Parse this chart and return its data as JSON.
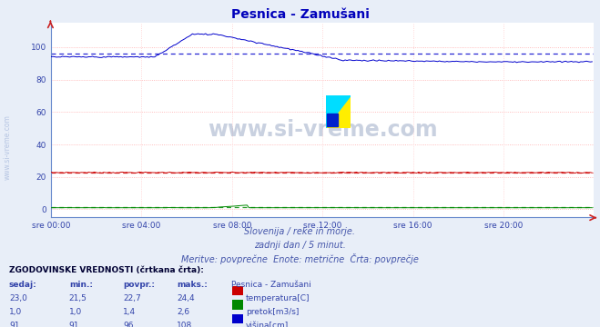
{
  "title": "Pesnica - Zamušani",
  "subtitle1": "Slovenija / reke in morje.",
  "subtitle2": "zadnji dan / 5 minut.",
  "subtitle3": "Meritve: povprečne  Enote: metrične  Črta: povprečje",
  "xlabel_ticks": [
    "sre 00:00",
    "sre 04:00",
    "sre 08:00",
    "sre 12:00",
    "sre 16:00",
    "sre 20:00"
  ],
  "ylabel_ticks": [
    "0",
    "20",
    "40",
    "60",
    "80",
    "100"
  ],
  "ylim": [
    -5,
    115
  ],
  "xlim": [
    0,
    288
  ],
  "watermark": "www.si-vreme.com",
  "side_label": "www.si-vreme.com",
  "bg_color": "#e8eef8",
  "plot_bg": "#ffffff",
  "grid_color_h": "#ffaaaa",
  "grid_color_v": "#ffcccc",
  "temp_color": "#cc0000",
  "flow_color": "#008800",
  "level_color": "#0000cc",
  "temp_avg": 22.7,
  "flow_avg": 1.4,
  "level_avg": 96,
  "table_header": "ZGODOVINSKE VREDNOSTI (črtkana črta):",
  "col_headers": [
    "sedaj:",
    "min.:",
    "povpr.:",
    "maks.:",
    "Pesnica - Zamušani"
  ],
  "row1": [
    "23,0",
    "21,5",
    "22,7",
    "24,4"
  ],
  "row2": [
    "1,0",
    "1,0",
    "1,4",
    "2,6"
  ],
  "row3": [
    "91",
    "91",
    "96",
    "108"
  ],
  "legend_items": [
    "temperatura[C]",
    "pretok[m3/s]",
    "višina[cm]"
  ],
  "legend_colors": [
    "#cc0000",
    "#008800",
    "#0000cc"
  ]
}
